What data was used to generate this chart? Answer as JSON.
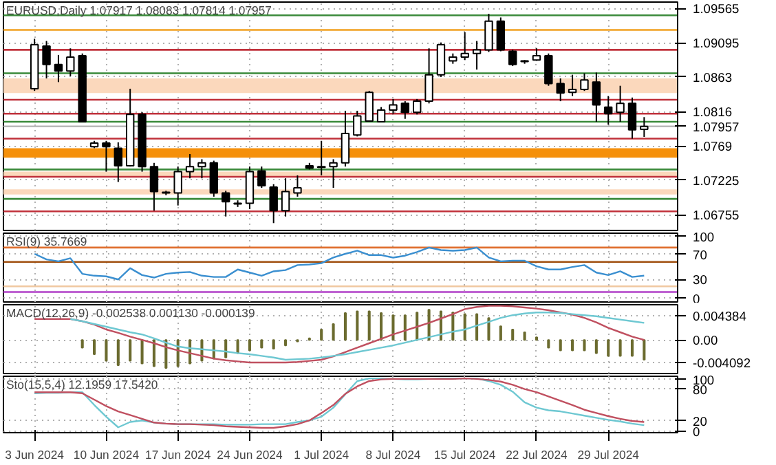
{
  "chart_data": [
    {
      "type": "candlestick",
      "title": "EURUSD,Daily 1.07917 1.08083 1.07814 1.07957",
      "tick_labels": "y",
      "grid": true,
      "ohlc": [
        [
          1.0847,
          1.0915,
          1.0844,
          1.0907
        ],
        [
          1.0905,
          1.0912,
          1.0861,
          1.088
        ],
        [
          1.088,
          1.0893,
          1.0856,
          1.0871
        ],
        [
          1.0871,
          1.0902,
          1.0864,
          1.089
        ],
        [
          1.0892,
          1.0895,
          1.0802,
          1.0802
        ],
        [
          1.0768,
          1.0776,
          1.0766,
          1.0773
        ],
        [
          1.0773,
          1.0776,
          1.0734,
          1.0768
        ],
        [
          1.0766,
          1.0774,
          1.072,
          1.0742
        ],
        [
          1.0742,
          1.0847,
          1.0741,
          1.0812
        ],
        [
          1.0812,
          1.0815,
          1.0734,
          1.0741
        ],
        [
          1.0741,
          1.0746,
          1.0681,
          1.0707
        ],
        [
          1.0705,
          1.0708,
          1.0702,
          1.0706
        ],
        [
          1.0705,
          1.0741,
          1.0688,
          1.0734
        ],
        [
          1.0734,
          1.0758,
          1.0725,
          1.0741
        ],
        [
          1.0741,
          1.0751,
          1.0725,
          1.0746
        ],
        [
          1.0746,
          1.0749,
          1.07,
          1.0705
        ],
        [
          1.0705,
          1.0708,
          1.0673,
          1.0693
        ],
        [
          1.069,
          1.0695,
          1.0686,
          1.0691
        ],
        [
          1.0691,
          1.0741,
          1.0683,
          1.0734
        ],
        [
          1.0735,
          1.0741,
          1.0712,
          1.0715
        ],
        [
          1.0713,
          1.0717,
          1.0664,
          1.0681
        ],
        [
          1.0681,
          1.0725,
          1.0673,
          1.0707
        ],
        [
          1.0705,
          1.0729,
          1.07,
          1.0712
        ],
        [
          1.0742,
          1.0746,
          1.0737,
          1.0739
        ],
        [
          1.0741,
          1.0776,
          1.0729,
          1.074
        ],
        [
          1.0741,
          1.0751,
          1.0712,
          1.0746
        ],
        [
          1.0746,
          1.0817,
          1.0741,
          1.0786
        ],
        [
          1.0784,
          1.0817,
          1.0782,
          1.081
        ],
        [
          1.0803,
          1.0844,
          1.0802,
          1.0842
        ],
        [
          1.0802,
          1.0822,
          1.0802,
          1.0818
        ],
        [
          1.0818,
          1.0833,
          1.0813,
          1.0825
        ],
        [
          1.0827,
          1.083,
          1.0806,
          1.0815
        ],
        [
          1.0815,
          1.0833,
          1.0812,
          1.083
        ],
        [
          1.083,
          1.0902,
          1.0827,
          1.0866
        ],
        [
          1.0866,
          1.091,
          1.0863,
          1.0907
        ],
        [
          1.0885,
          1.0895,
          1.0881,
          1.089
        ],
        [
          1.089,
          1.0924,
          1.0886,
          1.0895
        ],
        [
          1.0895,
          1.0912,
          1.0873,
          1.09
        ],
        [
          1.09,
          1.0949,
          1.0897,
          1.0939
        ],
        [
          1.0939,
          1.0944,
          1.0898,
          1.09
        ],
        [
          1.0898,
          1.09,
          1.0878,
          1.088
        ],
        [
          1.0885,
          1.0886,
          1.0881,
          1.0884
        ],
        [
          1.0886,
          1.0902,
          1.0885,
          1.0892
        ],
        [
          1.0892,
          1.0895,
          1.0851,
          1.0854
        ],
        [
          1.0854,
          1.0861,
          1.083,
          1.0841
        ],
        [
          1.0842,
          1.0866,
          1.0837,
          1.0846
        ],
        [
          1.0846,
          1.0868,
          1.0844,
          1.0859
        ],
        [
          1.0856,
          1.0869,
          1.0802,
          1.0825
        ],
        [
          1.0822,
          1.0837,
          1.0798,
          1.0813
        ],
        [
          1.0815,
          1.0851,
          1.0802,
          1.0827
        ],
        [
          1.0827,
          1.0835,
          1.0779,
          1.0791
        ],
        [
          1.07917,
          1.08083,
          1.07814,
          1.07957
        ]
      ],
      "ylim": [
        1.0654,
        1.0965
      ],
      "yticks": [
        1.09565,
        1.09095,
        1.0863,
        1.0816,
        1.0769,
        1.07225,
        1.06755
      ],
      "ref_lines": [
        {
          "axis": "y",
          "value": 1.0947,
          "color": "#3a8a3a"
        },
        {
          "axis": "y",
          "value": 1.0927,
          "color": "#f0a020"
        },
        {
          "axis": "y",
          "value": 1.09,
          "color": "#c0303a"
        },
        {
          "axis": "y",
          "value": 1.0868,
          "color": "#3a8a3a"
        },
        {
          "axis": "y",
          "value": 1.0832,
          "color": "#c0303a"
        },
        {
          "axis": "y",
          "value": 1.0813,
          "color": "#c0303a"
        },
        {
          "axis": "y",
          "value": 1.0802,
          "color": "#3a8a3a"
        },
        {
          "axis": "y",
          "value": 1.07957,
          "color": "#b8b8b8",
          "label": "1.07957"
        },
        {
          "axis": "y",
          "value": 1.0779,
          "color": "#c0303a"
        },
        {
          "axis": "y",
          "value": 1.0737,
          "color": "#3a8a3a"
        },
        {
          "axis": "y",
          "value": 1.0727,
          "color": "#c0303a"
        },
        {
          "axis": "y",
          "value": 1.0697,
          "color": "#3a8a3a"
        },
        {
          "axis": "y",
          "value": 1.068,
          "color": "#c0303a"
        }
      ],
      "bands": [
        {
          "axis": "y",
          "from": 1.0841,
          "to": 1.0861,
          "color": "#fbd8bc"
        },
        {
          "axis": "y",
          "from": 1.0753,
          "to": 1.0766,
          "color": "#f5900a"
        },
        {
          "axis": "y",
          "from": 1.0727,
          "to": 1.0734,
          "color": "#fbd8bc"
        },
        {
          "axis": "y",
          "from": 1.0703,
          "to": 1.071,
          "color": "#fbd8bc"
        }
      ]
    },
    {
      "type": "line",
      "title": "RSI(9) 35.7669",
      "tick_labels": "y",
      "grid": true,
      "series": [
        {
          "color": "#3a8fd0",
          "values": [
            71,
            62,
            59,
            64,
            39,
            36,
            35,
            30,
            48,
            37,
            33,
            39,
            41,
            42,
            36,
            34,
            34,
            46,
            41,
            36,
            43,
            45,
            53,
            54,
            56,
            65,
            71,
            76,
            69,
            69,
            65,
            68,
            74,
            81,
            77,
            76,
            77,
            81,
            65,
            59,
            60,
            60,
            51,
            46,
            46,
            50,
            53,
            41,
            37,
            43,
            34,
            36
          ]
        }
      ],
      "ylim": [
        -6,
        104
      ],
      "yticks": [
        100,
        70,
        30,
        0
      ],
      "ref_lines": [
        {
          "axis": "y",
          "value": 81,
          "color": "#e07030"
        },
        {
          "axis": "y",
          "value": 58,
          "color": "#a05010"
        },
        {
          "axis": "y",
          "value": 19,
          "color": "#f0c8a0"
        },
        {
          "axis": "y",
          "value": 10,
          "color": "#b040c8"
        }
      ]
    },
    {
      "type": "line",
      "title": "MACD(12,26,9) -0.002538 0.001130 -0.000139",
      "tick_labels": "y",
      "grid": true,
      "series": [
        {
          "type": "bar",
          "color": "#6b6b2f",
          "values": [
            null,
            null,
            null,
            null,
            -0.0014,
            -0.0026,
            -0.0038,
            -0.0046,
            -0.0038,
            -0.0043,
            -0.0048,
            -0.0051,
            -0.0048,
            -0.0043,
            -0.0038,
            -0.0034,
            -0.0032,
            -0.0024,
            -0.0019,
            -0.0014,
            -0.0016,
            -0.001,
            -0.0003,
            0.0003,
            0.0019,
            0.0029,
            0.0049,
            0.0052,
            0.0052,
            0.0049,
            0.0045,
            0.0045,
            0.005,
            0.0055,
            0.0052,
            0.005,
            0.0047,
            0.0047,
            0.004,
            0.0025,
            0.0019,
            0.0014,
            0.0005,
            -0.0014,
            -0.0019,
            -0.0019,
            -0.0019,
            -0.0024,
            -0.0029,
            -0.0029,
            -0.0029,
            -0.0036
          ]
        },
        {
          "type": "line",
          "color": "#c05060",
          "values": [
            0.0038,
            0.0038,
            0.0038,
            0.0038,
            0.0034,
            0.0028,
            0.0019,
            0.0013,
            0.0006,
            0.0,
            -0.0006,
            -0.0013,
            -0.0019,
            -0.0024,
            -0.0029,
            -0.0034,
            -0.0037,
            -0.0039,
            -0.0041,
            -0.0041,
            -0.0041,
            -0.0041,
            -0.004,
            -0.0038,
            -0.0036,
            -0.003,
            -0.0022,
            -0.0014,
            -0.0006,
            0.0002,
            0.001,
            0.0017,
            0.0024,
            0.0031,
            0.0039,
            0.0047,
            0.0056,
            0.006,
            0.0062,
            0.0062,
            0.0061,
            0.0059,
            0.0057,
            0.0054,
            0.005,
            0.0046,
            0.004,
            0.0032,
            0.0022,
            0.0014,
            0.0006,
            0.0
          ]
        },
        {
          "type": "line",
          "color": "#6ec8d2",
          "values": [
            null,
            null,
            null,
            0.0038,
            0.0034,
            0.0029,
            0.0024,
            0.0019,
            0.0014,
            0.001,
            0.0003,
            -0.0005,
            -0.0012,
            -0.0015,
            -0.0017,
            -0.0019,
            -0.0021,
            -0.0024,
            -0.0026,
            -0.0029,
            -0.0032,
            -0.0036,
            -0.0035,
            -0.0034,
            -0.0032,
            -0.0029,
            -0.0026,
            -0.0022,
            -0.0018,
            -0.0014,
            -0.001,
            -0.0005,
            0.0,
            0.0005,
            0.001,
            0.0015,
            0.0019,
            0.0026,
            0.0033,
            0.004,
            0.0045,
            0.0048,
            0.005,
            0.005,
            0.0049,
            0.0047,
            0.0045,
            0.0043,
            0.004,
            0.0037,
            0.0034,
            0.0031
          ]
        }
      ],
      "ylim": [
        -0.0061,
        0.0064
      ],
      "yticks": [
        0.004384,
        {
          "value": 0,
          "label": "0.00"
        },
        -0.004092
      ]
    },
    {
      "type": "line",
      "title": "Sto(15,5,4) 12.1959 17.5420",
      "grid": true,
      "categories": [
        "3 Jun 2024",
        null,
        null,
        null,
        null,
        null,
        "10 Jun 2024",
        null,
        null,
        null,
        null,
        null,
        "17 Jun 2024",
        null,
        null,
        null,
        null,
        null,
        "24 Jun 2024",
        null,
        null,
        null,
        null,
        null,
        "1 Jul 2024",
        null,
        null,
        null,
        null,
        null,
        "8 Jul 2024",
        null,
        null,
        null,
        null,
        null,
        "15 Jul 2024",
        null,
        null,
        null,
        null,
        null,
        "22 Jul 2024",
        null,
        null,
        null,
        null,
        null,
        "29 Jul 2024",
        null,
        null,
        null
      ],
      "series": [
        {
          "color": "#6ec8d2",
          "values": [
            72,
            73,
            73,
            74,
            74,
            50,
            28,
            8,
            18,
            21,
            17,
            15,
            14,
            14,
            14,
            14,
            13,
            13,
            13,
            14,
            14,
            14,
            18,
            21,
            28,
            45,
            70,
            95,
            100,
            100,
            99,
            98,
            98,
            99,
            100,
            100,
            100,
            100,
            95,
            88,
            75,
            55,
            45,
            40,
            38,
            34,
            30,
            26,
            22,
            19,
            15,
            12
          ]
        },
        {
          "color": "#c05060",
          "values": [
            74,
            74,
            74,
            74,
            72,
            60,
            48,
            38,
            31,
            24,
            17,
            15,
            14,
            14,
            13,
            12,
            10,
            9,
            8,
            7,
            7,
            10,
            14,
            21,
            35,
            50,
            71,
            85,
            95,
            98,
            99,
            99,
            99,
            99,
            99,
            99,
            100,
            99,
            97,
            94,
            88,
            80,
            74,
            66,
            58,
            50,
            41,
            35,
            29,
            24,
            20,
            18
          ]
        }
      ],
      "ylim": [
        -2,
        104
      ],
      "yticks": [
        100,
        80,
        20,
        0
      ]
    }
  ]
}
